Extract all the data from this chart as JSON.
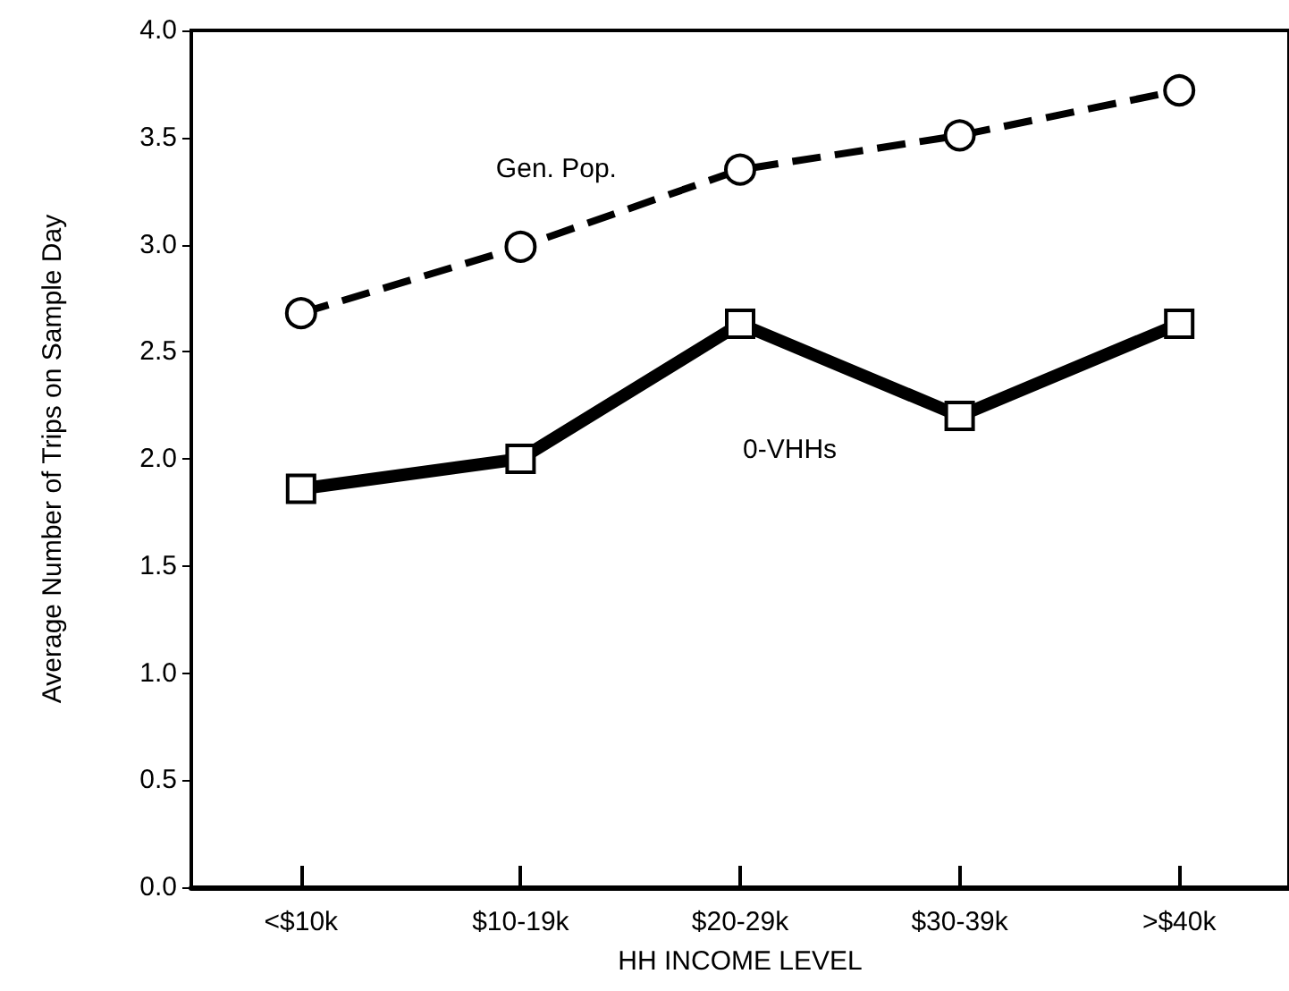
{
  "chart_data": {
    "type": "line",
    "xlabel": "HH INCOME LEVEL",
    "ylabel": "Average Number of Trips on Sample Day",
    "categories": [
      "<$10k",
      "$10-19k",
      "$20-29k",
      "$30-39k",
      ">$40k"
    ],
    "series": [
      {
        "name": "Gen. Pop.",
        "color": "#000000",
        "marker": "circle",
        "line_style": "dashed",
        "values": [
          2.68,
          2.99,
          3.35,
          3.51,
          3.72
        ]
      },
      {
        "name": "0-VHHs",
        "color": "#000000",
        "marker": "square",
        "line_style": "solid",
        "values": [
          1.86,
          2.0,
          2.63,
          2.2,
          2.63
        ]
      }
    ],
    "ylim": [
      0,
      4
    ],
    "yticks": [
      {
        "value": 0,
        "label": "0.0"
      },
      0.5,
      {
        "value": 1,
        "label": "1.0"
      },
      1.5,
      {
        "value": 2,
        "label": "2.0"
      },
      2.5,
      {
        "value": 3,
        "label": "3.0"
      },
      3.5,
      {
        "value": 4,
        "label": "4.0"
      }
    ],
    "grid": false,
    "legend": false
  }
}
